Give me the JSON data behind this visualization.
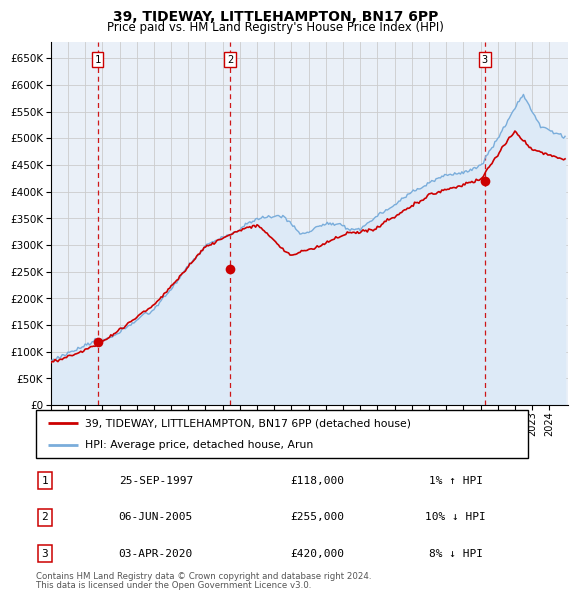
{
  "title": "39, TIDEWAY, LITTLEHAMPTON, BN17 6PP",
  "subtitle": "Price paid vs. HM Land Registry's House Price Index (HPI)",
  "ytick_values": [
    0,
    50000,
    100000,
    150000,
    200000,
    250000,
    300000,
    350000,
    400000,
    450000,
    500000,
    550000,
    600000,
    650000
  ],
  "ylim": [
    0,
    680000
  ],
  "sale_dates": [
    "1997-09-25",
    "2005-06-06",
    "2020-04-03"
  ],
  "sale_prices": [
    118000,
    255000,
    420000
  ],
  "sale_labels": [
    "1",
    "2",
    "3"
  ],
  "sale_info": [
    {
      "num": "1",
      "date": "25-SEP-1997",
      "price": "£118,000",
      "hpi": "1% ↑ HPI"
    },
    {
      "num": "2",
      "date": "06-JUN-2005",
      "price": "£255,000",
      "hpi": "10% ↓ HPI"
    },
    {
      "num": "3",
      "date": "03-APR-2020",
      "price": "£420,000",
      "hpi": "8% ↓ HPI"
    }
  ],
  "legend_line1": "39, TIDEWAY, LITTLEHAMPTON, BN17 6PP (detached house)",
  "legend_line2": "HPI: Average price, detached house, Arun",
  "footer1": "Contains HM Land Registry data © Crown copyright and database right 2024.",
  "footer2": "This data is licensed under the Open Government Licence v3.0.",
  "price_line_color": "#cc0000",
  "hpi_line_color": "#7aaddb",
  "hpi_fill_color": "#ddeaf7",
  "grid_color": "#cccccc",
  "bg_color": "#eaf0f8",
  "sale_marker_color": "#cc0000",
  "sale_vline_color": "#cc0000",
  "x_start_year": 1995,
  "x_end_year": 2024
}
